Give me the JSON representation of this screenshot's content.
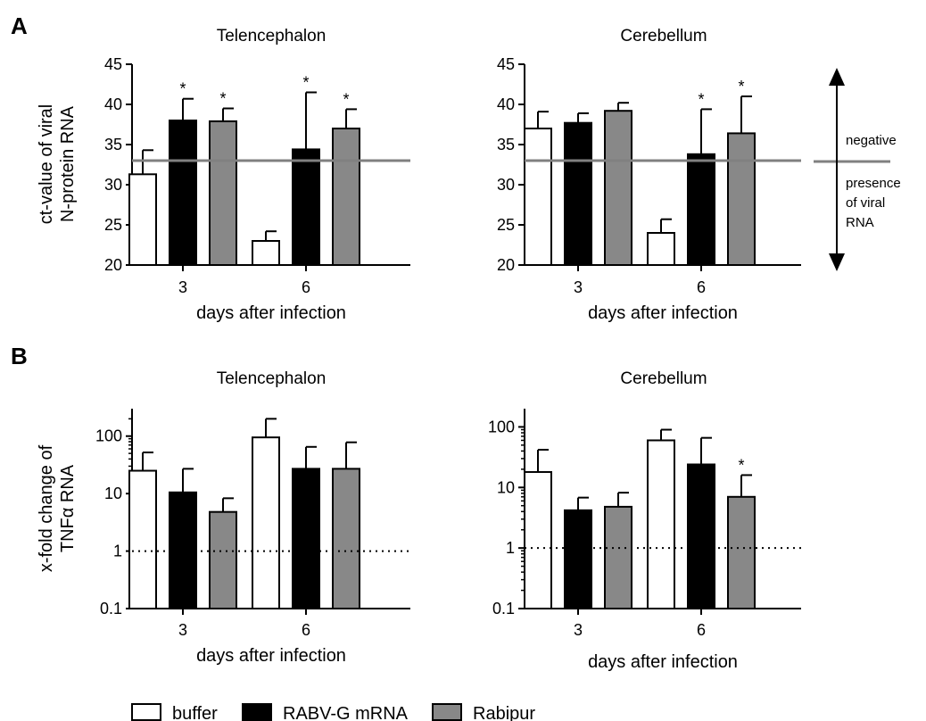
{
  "figure": {
    "panel_a_label": "A",
    "panel_b_label": "B",
    "annotations": {
      "negative": "negative",
      "presence_lines": [
        "presence",
        "of viral",
        "RNA"
      ]
    },
    "legend": [
      {
        "label": "buffer",
        "color": "#ffffff"
      },
      {
        "label": "RABV-G mRNA",
        "color": "#000000"
      },
      {
        "label": "Rabipur",
        "color": "#888888"
      }
    ],
    "colors": {
      "buffer": "#ffffff",
      "mrna": "#000000",
      "rabipur": "#888888",
      "threshold": "#808080"
    }
  },
  "chart_data": [
    {
      "type": "bar",
      "title": "Telencephalon",
      "ylabel": [
        "ct-value of viral",
        "N-protein RNA"
      ],
      "xlabel": "days after infection",
      "categories": [
        "3",
        "6"
      ],
      "ylim": [
        20,
        45
      ],
      "yticks": [
        "20",
        "25",
        "30",
        "35",
        "40",
        "45"
      ],
      "series": [
        {
          "name": "buffer",
          "values": [
            31.3,
            23.0
          ],
          "errors": [
            3.0,
            1.2
          ],
          "sig": [
            "",
            ""
          ]
        },
        {
          "name": "RABV-G mRNA",
          "values": [
            38.0,
            34.4
          ],
          "errors": [
            2.7,
            7.1
          ],
          "sig": [
            "*",
            "*"
          ]
        },
        {
          "name": "Rabipur",
          "values": [
            37.9,
            37.0
          ],
          "errors": [
            1.6,
            2.4
          ],
          "sig": [
            "*",
            "*"
          ]
        }
      ],
      "reference_line": 33
    },
    {
      "type": "bar",
      "title": "Cerebellum",
      "ylabel": [],
      "xlabel": "days after infection",
      "categories": [
        "3",
        "6"
      ],
      "ylim": [
        20,
        45
      ],
      "yticks": [
        "20",
        "25",
        "30",
        "35",
        "40",
        "45"
      ],
      "series": [
        {
          "name": "buffer",
          "values": [
            37.0,
            24.0
          ],
          "errors": [
            2.1,
            1.7
          ],
          "sig": [
            "",
            ""
          ]
        },
        {
          "name": "RABV-G mRNA",
          "values": [
            37.7,
            33.8
          ],
          "errors": [
            1.2,
            5.6
          ],
          "sig": [
            "",
            "*"
          ]
        },
        {
          "name": "Rabipur",
          "values": [
            39.2,
            36.4
          ],
          "errors": [
            1.0,
            4.6
          ],
          "sig": [
            "",
            "*"
          ]
        }
      ],
      "reference_line": 33
    },
    {
      "type": "bar",
      "title": "Telencephalon",
      "ylabel": [
        "x-fold change of",
        "TNFα RNA"
      ],
      "xlabel": "days after infection",
      "categories": [
        "3",
        "6"
      ],
      "yscale": "log",
      "ylim": [
        0.1,
        300
      ],
      "yticks": [
        "0.1",
        "1",
        "10",
        "100"
      ],
      "series": [
        {
          "name": "buffer",
          "values": [
            25,
            95
          ],
          "errors_upper": [
            52,
            200
          ],
          "sig": [
            "",
            ""
          ]
        },
        {
          "name": "RABV-G mRNA",
          "values": [
            10.5,
            27
          ],
          "errors_upper": [
            27,
            65
          ],
          "sig": [
            "",
            ""
          ]
        },
        {
          "name": "Rabipur",
          "values": [
            4.8,
            27
          ],
          "errors_upper": [
            8.3,
            78
          ],
          "sig": [
            "",
            ""
          ]
        }
      ],
      "reference_line": 1
    },
    {
      "type": "bar",
      "title": "Cerebellum",
      "ylabel": [],
      "xlabel": "days after infection",
      "categories": [
        "3",
        "6"
      ],
      "yscale": "log",
      "ylim": [
        0.1,
        200
      ],
      "yticks": [
        "0.1",
        "1",
        "10",
        "100"
      ],
      "series": [
        {
          "name": "buffer",
          "values": [
            18,
            60
          ],
          "errors_upper": [
            42,
            90
          ],
          "sig": [
            "",
            ""
          ]
        },
        {
          "name": "RABV-G mRNA",
          "values": [
            4.2,
            24
          ],
          "errors_upper": [
            6.8,
            66
          ],
          "sig": [
            "",
            ""
          ]
        },
        {
          "name": "Rabipur",
          "values": [
            4.8,
            7
          ],
          "errors_upper": [
            8.2,
            16
          ],
          "sig": [
            "",
            "*"
          ]
        }
      ],
      "reference_line": 1
    }
  ]
}
